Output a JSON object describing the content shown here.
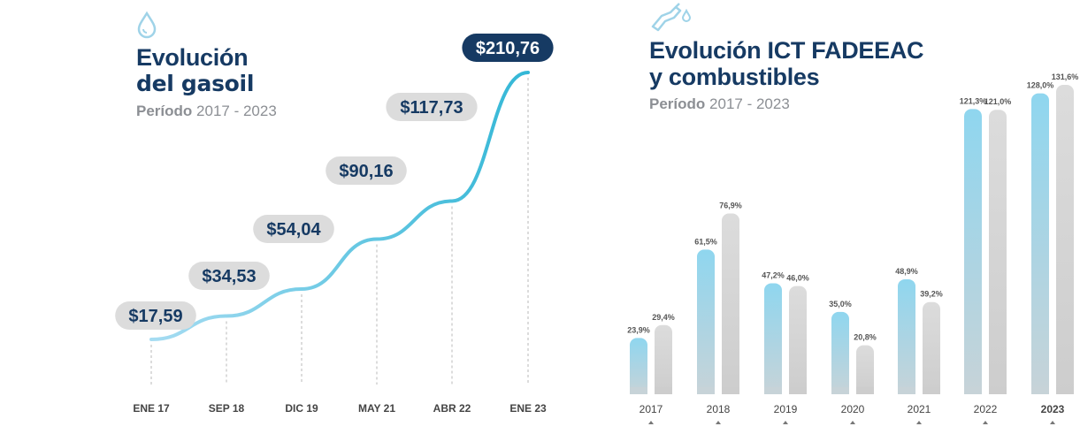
{
  "left": {
    "title_line1": "Evolución",
    "title_line2": "del gasoil",
    "period_label": "Período",
    "period_range": "2017 - 2023",
    "icon": "water-drop-icon"
  },
  "right": {
    "title_line1": "Evolución ICT FADEEAC",
    "title_line2": "y combustibles",
    "period_label": "Período",
    "period_range": "2017 - 2023",
    "icon": "fuel-nozzle-icon"
  },
  "colors": {
    "navy": "#163a63",
    "line_start": "#a6dcf2",
    "line_end": "#33b7d6",
    "ict_bar": "#8fd6ef",
    "fuel_bar": "#dcdcdc",
    "label_pill": "#dcdcdc"
  },
  "chart_data": [
    {
      "type": "line",
      "x": [
        "ENE 17",
        "SEP 18",
        "DIC 19",
        "MAY 21",
        "ABR 22",
        "ENE 23"
      ],
      "values": [
        17.59,
        34.53,
        54.04,
        90.16,
        117.73,
        210.76
      ],
      "data_labels": [
        "$17,59",
        "$34,53",
        "$54,04",
        "$90,16",
        "$117,73",
        "$210,76"
      ],
      "title": "Evolución del gasoil",
      "subtitle": "Período 2017 - 2023",
      "grid": false,
      "legend": "none"
    },
    {
      "type": "bar",
      "categories": [
        "2017",
        "2018",
        "2019",
        "2020",
        "2021",
        "2022",
        "2023"
      ],
      "series": [
        {
          "values": [
            23.9,
            61.5,
            47.2,
            35.0,
            48.9,
            121.3,
            128.0
          ],
          "labels": [
            "23,9%",
            "61,5%",
            "47,2%",
            "35,0%",
            "48,9%",
            "121,3%",
            "128,0%"
          ]
        },
        {
          "values": [
            29.4,
            76.9,
            46.0,
            20.8,
            39.2,
            121.0,
            131.6
          ],
          "labels": [
            "29,4%",
            "76,9%",
            "46,0%",
            "20,8%",
            "39,2%",
            "121,0%",
            "131,6%"
          ]
        }
      ],
      "title": "Evolución ICT FADEEAC y combustibles",
      "subtitle": "Período 2017 - 2023",
      "ylim": [
        0,
        131.6
      ],
      "grid": false,
      "legend": "none"
    }
  ]
}
